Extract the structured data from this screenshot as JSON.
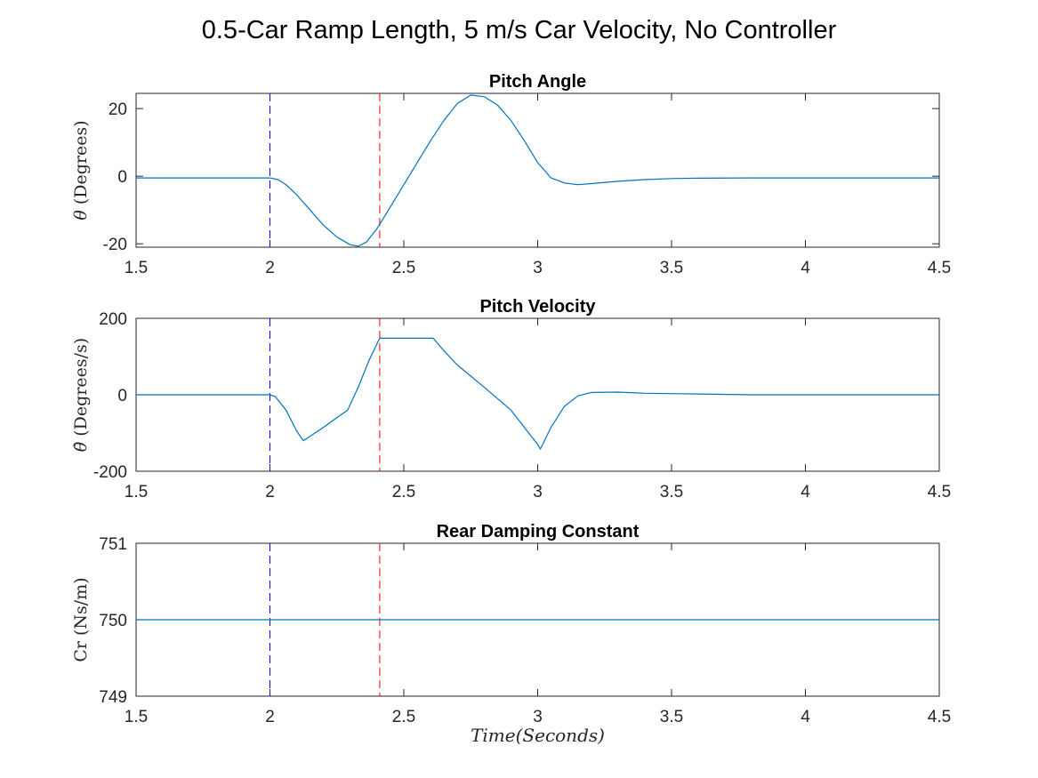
{
  "figure": {
    "title": "0.5-Car Ramp Length,  5 m/s Car Velocity, No Controller",
    "xlabel": "Time(Seconds)"
  },
  "colors": {
    "series": "#0072BD",
    "marker_blue": "#0000FF",
    "marker_red": "#FF0000",
    "axes": "#262626"
  },
  "chart_data": [
    {
      "type": "line",
      "title": "Pitch Angle",
      "ylabel": {
        "symbol": "θ",
        "text": "(Degrees)"
      },
      "xlim": [
        1.5,
        4.5
      ],
      "ylim": [
        -21,
        24.5
      ],
      "xticks": [
        1.5,
        2,
        2.5,
        3,
        3.5,
        4,
        4.5
      ],
      "xtick_labels": [
        "1.5",
        "2",
        "2.5",
        "3",
        "3.5",
        "4",
        "4.5"
      ],
      "yticks": [
        -20,
        0,
        20
      ],
      "ytick_labels": [
        "-20",
        "0",
        "20"
      ],
      "vlines": [
        {
          "x": 2.0,
          "color": "blue",
          "style": "dashed"
        },
        {
          "x": 2.41,
          "color": "red",
          "style": "dashed"
        }
      ],
      "series": [
        {
          "x": [
            1.5,
            1.8,
            2.0,
            2.03,
            2.06,
            2.1,
            2.15,
            2.2,
            2.25,
            2.3,
            2.33,
            2.36,
            2.4,
            2.45,
            2.5,
            2.55,
            2.6,
            2.65,
            2.7,
            2.75,
            2.8,
            2.85,
            2.9,
            2.95,
            3.0,
            3.05,
            3.1,
            3.15,
            3.2,
            3.3,
            3.4,
            3.5,
            3.6,
            3.8,
            4.0,
            4.5
          ],
          "y": [
            -0.5,
            -0.5,
            -0.5,
            -1.0,
            -2.5,
            -5.5,
            -10.0,
            -14.5,
            -18.0,
            -20.3,
            -20.7,
            -19.5,
            -15.5,
            -9.0,
            -2.5,
            4.0,
            10.5,
            16.5,
            21.5,
            24.0,
            23.5,
            21.0,
            16.5,
            10.5,
            4.0,
            -0.5,
            -2.0,
            -2.5,
            -2.2,
            -1.5,
            -1.0,
            -0.7,
            -0.6,
            -0.5,
            -0.5,
            -0.5
          ]
        }
      ]
    },
    {
      "type": "line",
      "title": "Pitch Velocity",
      "ylabel": {
        "symbol": "θ̇",
        "text": "(Degrees/s)"
      },
      "xlim": [
        1.5,
        4.5
      ],
      "ylim": [
        -200,
        200
      ],
      "xticks": [
        1.5,
        2,
        2.5,
        3,
        3.5,
        4,
        4.5
      ],
      "xtick_labels": [
        "1.5",
        "2",
        "2.5",
        "3",
        "3.5",
        "4",
        "4.5"
      ],
      "yticks": [
        -200,
        0,
        200
      ],
      "ytick_labels": [
        "-200",
        "0",
        "200"
      ],
      "vlines": [
        {
          "x": 2.0,
          "color": "blue",
          "style": "dashed"
        },
        {
          "x": 2.41,
          "color": "red",
          "style": "dashed"
        }
      ],
      "series": [
        {
          "x": [
            1.5,
            2.0,
            2.02,
            2.06,
            2.1,
            2.125,
            2.2,
            2.25,
            2.29,
            2.33,
            2.37,
            2.41,
            2.45,
            2.5,
            2.55,
            2.61,
            2.65,
            2.7,
            2.8,
            2.9,
            3.0,
            3.01,
            3.05,
            3.1,
            3.15,
            3.2,
            3.3,
            3.4,
            3.6,
            3.8,
            4.5
          ],
          "y": [
            0,
            0,
            -5,
            -40,
            -95,
            -120,
            -85,
            -60,
            -40,
            20,
            90,
            148,
            148,
            148,
            148,
            148,
            115,
            78,
            20,
            -40,
            -130,
            -142,
            -85,
            -30,
            -3,
            6,
            7,
            4,
            2,
            0,
            0
          ]
        }
      ]
    },
    {
      "type": "line",
      "title": "Rear Damping Constant",
      "ylabel": {
        "symbol": "",
        "text": "Cr (Ns/m)"
      },
      "xlim": [
        1.5,
        4.5
      ],
      "ylim": [
        749,
        751
      ],
      "xticks": [
        1.5,
        2,
        2.5,
        3,
        3.5,
        4,
        4.5
      ],
      "xtick_labels": [
        "1.5",
        "2",
        "2.5",
        "3",
        "3.5",
        "4",
        "4.5"
      ],
      "yticks": [
        749,
        750,
        751
      ],
      "ytick_labels": [
        "749",
        "750",
        "751"
      ],
      "vlines": [
        {
          "x": 2.0,
          "color": "blue",
          "style": "dashed"
        },
        {
          "x": 2.41,
          "color": "red",
          "style": "dashed"
        }
      ],
      "series": [
        {
          "x": [
            1.5,
            4.5
          ],
          "y": [
            750,
            750
          ]
        }
      ]
    }
  ]
}
